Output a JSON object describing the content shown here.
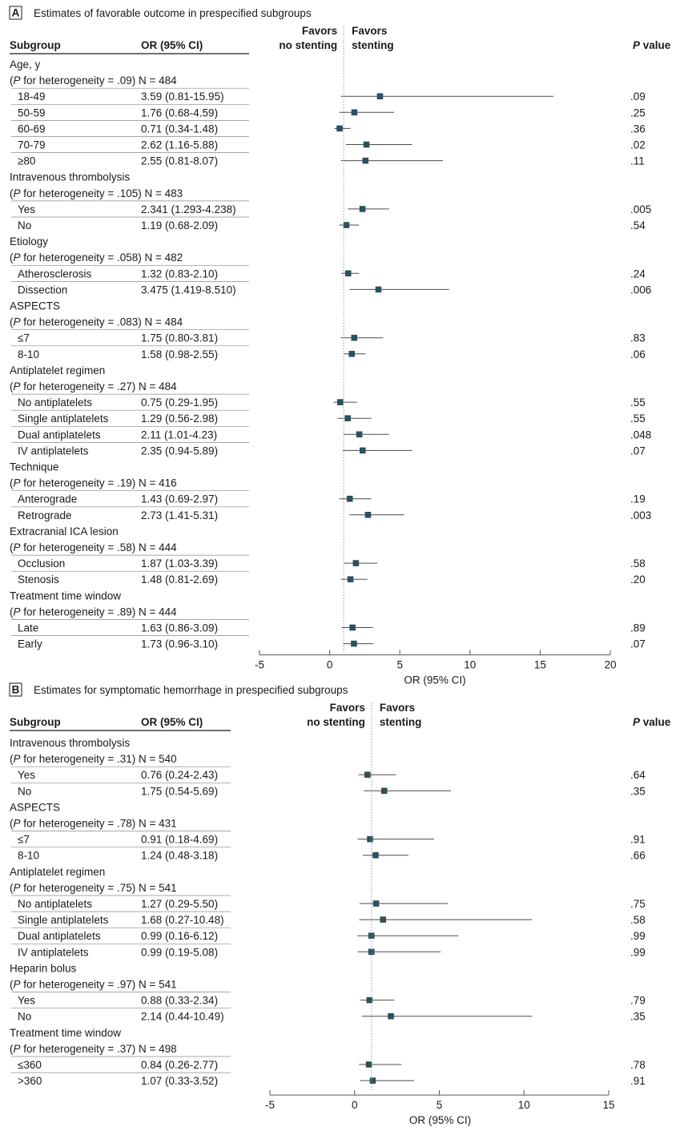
{
  "chart_data": [
    {
      "type": "forest",
      "panel_label": "A",
      "title": "Estimates of favorable outcome in prespecified subgroups",
      "col_subgroup": "Subgroup",
      "col_or": "OR (95% CI)",
      "col_p_italic": "P",
      "col_p_rest": " value",
      "favors_left": [
        "Favors",
        "no stenting"
      ],
      "favors_right": [
        "Favors",
        "stenting"
      ],
      "xlabel": "OR (95% CI)",
      "xlim": [
        -5,
        20
      ],
      "xticks": [
        -5,
        0,
        5,
        10,
        15,
        20
      ],
      "xtick_labels": [
        "-5",
        "0",
        "5",
        "10",
        "15",
        "20"
      ],
      "reference_line": 1,
      "groups": [
        {
          "name": "Age, y",
          "p_het": ".09",
          "n": "N = 484",
          "rows": [
            {
              "label": "18-49",
              "or_text": "3.59 (0.81-15.95)",
              "est": 3.59,
              "lo": 0.81,
              "hi": 15.95,
              "p": ".09"
            },
            {
              "label": "50-59",
              "or_text": "1.76 (0.68-4.59)",
              "est": 1.76,
              "lo": 0.68,
              "hi": 4.59,
              "p": ".25"
            },
            {
              "label": "60-69",
              "or_text": "0.71 (0.34-1.48)",
              "est": 0.71,
              "lo": 0.34,
              "hi": 1.48,
              "p": ".36"
            },
            {
              "label": "70-79",
              "or_text": "2.62 (1.16-5.88)",
              "est": 2.62,
              "lo": 1.16,
              "hi": 5.88,
              "p": ".02"
            },
            {
              "label": "≥80",
              "or_text": "2.55 (0.81-8.07)",
              "est": 2.55,
              "lo": 0.81,
              "hi": 8.07,
              "p": ".11"
            }
          ]
        },
        {
          "name": "Intravenous thrombolysis",
          "p_het": ".105",
          "n": "N = 483",
          "rows": [
            {
              "label": "Yes",
              "or_text": "2.341 (1.293-4.238)",
              "est": 2.341,
              "lo": 1.293,
              "hi": 4.238,
              "p": ".005"
            },
            {
              "label": "No",
              "or_text": "1.19 (0.68-2.09)",
              "est": 1.19,
              "lo": 0.68,
              "hi": 2.09,
              "p": ".54"
            }
          ]
        },
        {
          "name": "Etiology",
          "p_het": ".058",
          "n": "N = 482",
          "rows": [
            {
              "label": "Atherosclerosis",
              "or_text": "1.32 (0.83-2.10)",
              "est": 1.32,
              "lo": 0.83,
              "hi": 2.1,
              "p": ".24"
            },
            {
              "label": "Dissection",
              "or_text": "3.475 (1.419-8.510)",
              "est": 3.475,
              "lo": 1.419,
              "hi": 8.51,
              "p": ".006"
            }
          ]
        },
        {
          "name": "ASPECTS",
          "p_het": ".083",
          "n": "N = 484",
          "rows": [
            {
              "label": "≤7",
              "or_text": "1.75 (0.80-3.81)",
              "est": 1.75,
              "lo": 0.8,
              "hi": 3.81,
              "p": ".83"
            },
            {
              "label": "8-10",
              "or_text": "1.58 (0.98-2.55)",
              "est": 1.58,
              "lo": 0.98,
              "hi": 2.55,
              "p": ".06"
            }
          ]
        },
        {
          "name": "Antiplatelet regimen",
          "p_het": ".27",
          "n": "N = 484",
          "rows": [
            {
              "label": "No antiplatelets",
              "or_text": "0.75 (0.29-1.95)",
              "est": 0.75,
              "lo": 0.29,
              "hi": 1.95,
              "p": ".55"
            },
            {
              "label": "Single antiplatelets",
              "or_text": "1.29 (0.56-2.98)",
              "est": 1.29,
              "lo": 0.56,
              "hi": 2.98,
              "p": ".55"
            },
            {
              "label": "Dual antiplatelets",
              "or_text": "2.11 (1.01-4.23)",
              "est": 2.11,
              "lo": 1.01,
              "hi": 4.23,
              "p": ".048"
            },
            {
              "label": "IV antiplatelets",
              "or_text": "2.35 (0.94-5.89)",
              "est": 2.35,
              "lo": 0.94,
              "hi": 5.89,
              "p": ".07"
            }
          ]
        },
        {
          "name": "Technique",
          "p_het": ".19",
          "n": "N = 416",
          "rows": [
            {
              "label": "Anterograde",
              "or_text": "1.43 (0.69-2.97)",
              "est": 1.43,
              "lo": 0.69,
              "hi": 2.97,
              "p": ".19"
            },
            {
              "label": "Retrograde",
              "or_text": "2.73 (1.41-5.31)",
              "est": 2.73,
              "lo": 1.41,
              "hi": 5.31,
              "p": ".003"
            }
          ]
        },
        {
          "name": "Extracranial ICA lesion",
          "p_het": ".58",
          "n": "N = 444",
          "rows": [
            {
              "label": "Occlusion",
              "or_text": "1.87 (1.03-3.39)",
              "est": 1.87,
              "lo": 1.03,
              "hi": 3.39,
              "p": ".58"
            },
            {
              "label": "Stenosis",
              "or_text": "1.48 (0.81-2.69)",
              "est": 1.48,
              "lo": 0.81,
              "hi": 2.69,
              "p": ".20"
            }
          ]
        },
        {
          "name": "Treatment time window",
          "p_het": ".89",
          "n": "N = 444",
          "rows": [
            {
              "label": "Late",
              "or_text": "1.63 (0.86-3.09)",
              "est": 1.63,
              "lo": 0.86,
              "hi": 3.09,
              "p": ".89"
            },
            {
              "label": "Early",
              "or_text": "1.73 (0.96-3.10)",
              "est": 1.73,
              "lo": 0.96,
              "hi": 3.1,
              "p": ".07"
            }
          ]
        }
      ]
    },
    {
      "type": "forest",
      "panel_label": "B",
      "title": "Estimates for symptomatic hemorrhage in prespecified subgroups",
      "col_subgroup": "Subgroup",
      "col_or": "OR (95% CI)",
      "col_p_italic": "P",
      "col_p_rest": " value",
      "favors_left": [
        "Favors",
        "no stenting"
      ],
      "favors_right": [
        "Favors",
        "stenting"
      ],
      "xlabel": "OR (95% CI)",
      "xlim": [
        -5,
        15
      ],
      "xticks": [
        -5,
        0,
        5,
        10,
        15
      ],
      "xtick_labels": [
        "-5",
        "0",
        "5",
        "10",
        "15"
      ],
      "reference_line": 1,
      "groups": [
        {
          "name": "Intravenous thrombolysis",
          "p_het": ".31",
          "n": "N = 540",
          "rows": [
            {
              "label": "Yes",
              "or_text": "0.76 (0.24-2.43)",
              "est": 0.76,
              "lo": 0.24,
              "hi": 2.43,
              "p": ".64"
            },
            {
              "label": "No",
              "or_text": "1.75 (0.54-5.69)",
              "est": 1.75,
              "lo": 0.54,
              "hi": 5.69,
              "p": ".35"
            }
          ]
        },
        {
          "name": "ASPECTS",
          "p_het": ".78",
          "n": "N = 431",
          "rows": [
            {
              "label": "≤7",
              "or_text": "0.91 (0.18-4.69)",
              "est": 0.91,
              "lo": 0.18,
              "hi": 4.69,
              "p": ".91"
            },
            {
              "label": "8-10",
              "or_text": "1.24 (0.48-3.18)",
              "est": 1.24,
              "lo": 0.48,
              "hi": 3.18,
              "p": ".66"
            }
          ]
        },
        {
          "name": "Antiplatelet regimen",
          "p_het": ".75",
          "n": "N = 541",
          "rows": [
            {
              "label": "No antiplatelets",
              "or_text": "1.27 (0.29-5.50)",
              "est": 1.27,
              "lo": 0.29,
              "hi": 5.5,
              "p": ".75"
            },
            {
              "label": "Single antiplatelets",
              "or_text": "1.68 (0.27-10.48)",
              "est": 1.68,
              "lo": 0.27,
              "hi": 10.48,
              "p": ".58"
            },
            {
              "label": "Dual antiplatelets",
              "or_text": "0.99 (0.16-6.12)",
              "est": 0.99,
              "lo": 0.16,
              "hi": 6.12,
              "p": ".99"
            },
            {
              "label": "IV antiplatelets",
              "or_text": "0.99 (0.19-5.08)",
              "est": 0.99,
              "lo": 0.19,
              "hi": 5.08,
              "p": ".99"
            }
          ]
        },
        {
          "name": "Heparin bolus",
          "p_het": ".97",
          "n": "N = 541",
          "rows": [
            {
              "label": "Yes",
              "or_text": "0.88 (0.33-2.34)",
              "est": 0.88,
              "lo": 0.33,
              "hi": 2.34,
              "p": ".79"
            },
            {
              "label": "No",
              "or_text": "2.14 (0.44-10.49)",
              "est": 2.14,
              "lo": 0.44,
              "hi": 10.49,
              "p": ".35"
            }
          ]
        },
        {
          "name": "Treatment time window",
          "p_het": ".37",
          "n": "N = 498",
          "rows": [
            {
              "label": "≤360",
              "or_text": "0.84 (0.26-2.77)",
              "est": 0.84,
              "lo": 0.26,
              "hi": 2.77,
              "p": ".78"
            },
            {
              "label": ">360",
              "or_text": "1.07 (0.33-3.52)",
              "est": 1.07,
              "lo": 0.33,
              "hi": 3.52,
              "p": ".91"
            }
          ]
        }
      ]
    }
  ],
  "labels": {
    "p_heterogeneity_italic": "P",
    "p_heterogeneity_rest": " for heterogeneity = "
  },
  "colors": {
    "marker": "#2e4f5c",
    "ci_line": "#4a4a4a",
    "rule": "#1a1a1a",
    "row_rule": "#8a8a8a",
    "ref_line": "#9a9a9a"
  }
}
